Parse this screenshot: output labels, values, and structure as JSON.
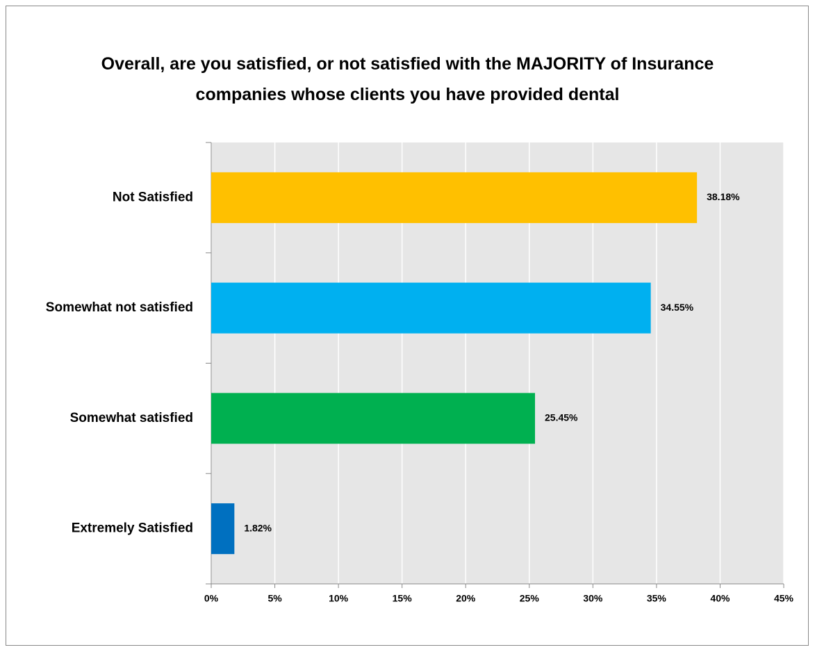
{
  "chart_data": {
    "type": "barh",
    "title": "Overall, are you satisfied, or not satisfied with the MAJORITY of Insurance companies whose clients you have provided dental",
    "categories": [
      "Not Satisfied",
      "Somewhat not satisfied",
      "Somewhat satisfied",
      "Extremely Satisfied"
    ],
    "values": [
      38.18,
      34.55,
      25.45,
      1.82
    ],
    "value_labels": [
      "38.18%",
      "34.55%",
      "25.45%",
      "1.82%"
    ],
    "colors": [
      "#ffc000",
      "#00b0f0",
      "#00b050",
      "#0070c0"
    ],
    "xlim": [
      0,
      45
    ],
    "xticks": [
      {
        "value": 0,
        "label": "0%"
      },
      {
        "value": 5,
        "label": "5%"
      },
      {
        "value": 10,
        "label": "10%"
      },
      {
        "value": 15,
        "label": "15%"
      },
      {
        "value": 20,
        "label": "20%"
      },
      {
        "value": 25,
        "label": "25%"
      },
      {
        "value": 30,
        "label": "30%"
      },
      {
        "value": 35,
        "label": "35%"
      },
      {
        "value": 40,
        "label": "40%"
      },
      {
        "value": 45,
        "label": "45%"
      }
    ],
    "grid": true
  }
}
